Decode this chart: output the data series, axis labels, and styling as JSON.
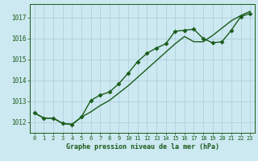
{
  "title": "Graphe pression niveau de la mer (hPa)",
  "bg_color": "#cce8f0",
  "line_color": "#1a5c1a",
  "grid_color": "#aaccd8",
  "x_ticks": [
    0,
    1,
    2,
    3,
    4,
    5,
    6,
    7,
    8,
    9,
    10,
    11,
    12,
    13,
    14,
    15,
    16,
    17,
    18,
    19,
    20,
    21,
    22,
    23
  ],
  "y_ticks": [
    1012,
    1013,
    1014,
    1015,
    1016,
    1017
  ],
  "ylim": [
    1011.5,
    1017.65
  ],
  "xlim": [
    -0.5,
    23.5
  ],
  "series1_x": [
    0,
    1,
    2,
    3,
    4,
    5,
    6,
    7,
    8,
    9,
    10,
    11,
    12,
    13,
    14,
    15,
    16,
    17,
    18,
    19,
    20,
    21,
    22,
    23
  ],
  "series1_y": [
    1012.45,
    1012.2,
    1012.2,
    1011.95,
    1011.9,
    1012.25,
    1013.05,
    1013.3,
    1013.45,
    1013.85,
    1014.35,
    1014.9,
    1015.3,
    1015.55,
    1015.75,
    1016.35,
    1016.4,
    1016.45,
    1016.0,
    1015.8,
    1015.85,
    1016.4,
    1017.05,
    1017.2
  ],
  "series2_x": [
    0,
    1,
    2,
    3,
    4,
    5,
    6,
    7,
    8,
    9,
    10,
    11,
    12,
    13,
    14,
    15,
    16,
    17,
    18,
    19,
    20,
    21,
    22,
    23
  ],
  "series2_y": [
    1012.45,
    1012.2,
    1012.2,
    1011.95,
    1011.9,
    1012.25,
    1012.5,
    1012.8,
    1013.05,
    1013.4,
    1013.75,
    1014.15,
    1014.55,
    1014.95,
    1015.35,
    1015.75,
    1016.1,
    1015.85,
    1015.85,
    1016.15,
    1016.5,
    1016.85,
    1017.1,
    1017.3
  ],
  "marker": "D",
  "marker_size": 2.5,
  "linewidth": 1.0
}
